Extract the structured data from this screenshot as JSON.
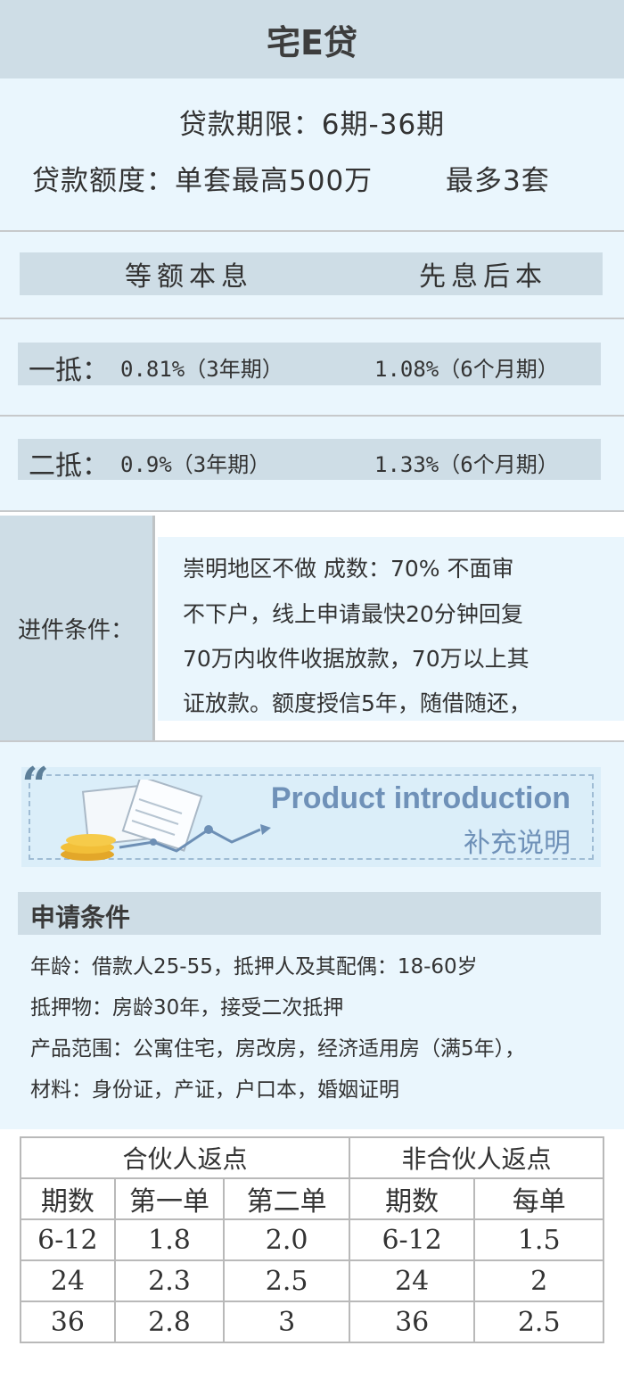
{
  "title": "宅E贷",
  "loan": {
    "term": "贷款期限：6期-36期",
    "amount": "贷款额度：单套最高500万",
    "max_sets": "最多3套"
  },
  "repayment_headers": [
    "等额本息",
    "先息后本"
  ],
  "rates": [
    {
      "label": "一抵：",
      "equal": "0.81%（3年期）",
      "interest_first": "1.08%（6个月期）"
    },
    {
      "label": "二抵：",
      "equal": "0.9%（3年期）",
      "interest_first": "1.33%（6个月期）"
    }
  ],
  "conditions": {
    "label": "进件条件：",
    "lines": [
      "崇明地区不做 成数：70% 不面审",
      "不下户，线上申请最快20分钟回复",
      "70万内收件收据放款，70万以上其",
      "证放款。额度授信5年，随借随还，"
    ]
  },
  "banner": {
    "quote": "“",
    "title_en": "Product introduction",
    "title_cn": "补充说明"
  },
  "apply": {
    "heading": "申请条件",
    "lines": [
      "年龄：借款人25-55，抵押人及其配偶：18-60岁",
      "抵押物：房龄30年，接受二次抵押",
      "产品范围：公寓住宅，房改房，经济适用房（满5年），",
      "材料：身份证，产证，户口本，婚姻证明"
    ]
  },
  "rebate_table": {
    "group_partner": "合伙人返点",
    "group_nonpartner": "非合伙人返点",
    "columns": [
      "期数",
      "第一单",
      "第二单",
      "期数",
      "每单"
    ],
    "rows": [
      [
        "6-12",
        "1.8",
        "2.0",
        "6-12",
        "1.5"
      ],
      [
        "24",
        "2.3",
        "2.5",
        "24",
        "2"
      ],
      [
        "36",
        "2.8",
        "3",
        "36",
        "2.5"
      ]
    ]
  },
  "colors": {
    "header_bg": "#cedde6",
    "panel_bg": "#eaf6fd",
    "banner_text": "#6f91b8"
  }
}
